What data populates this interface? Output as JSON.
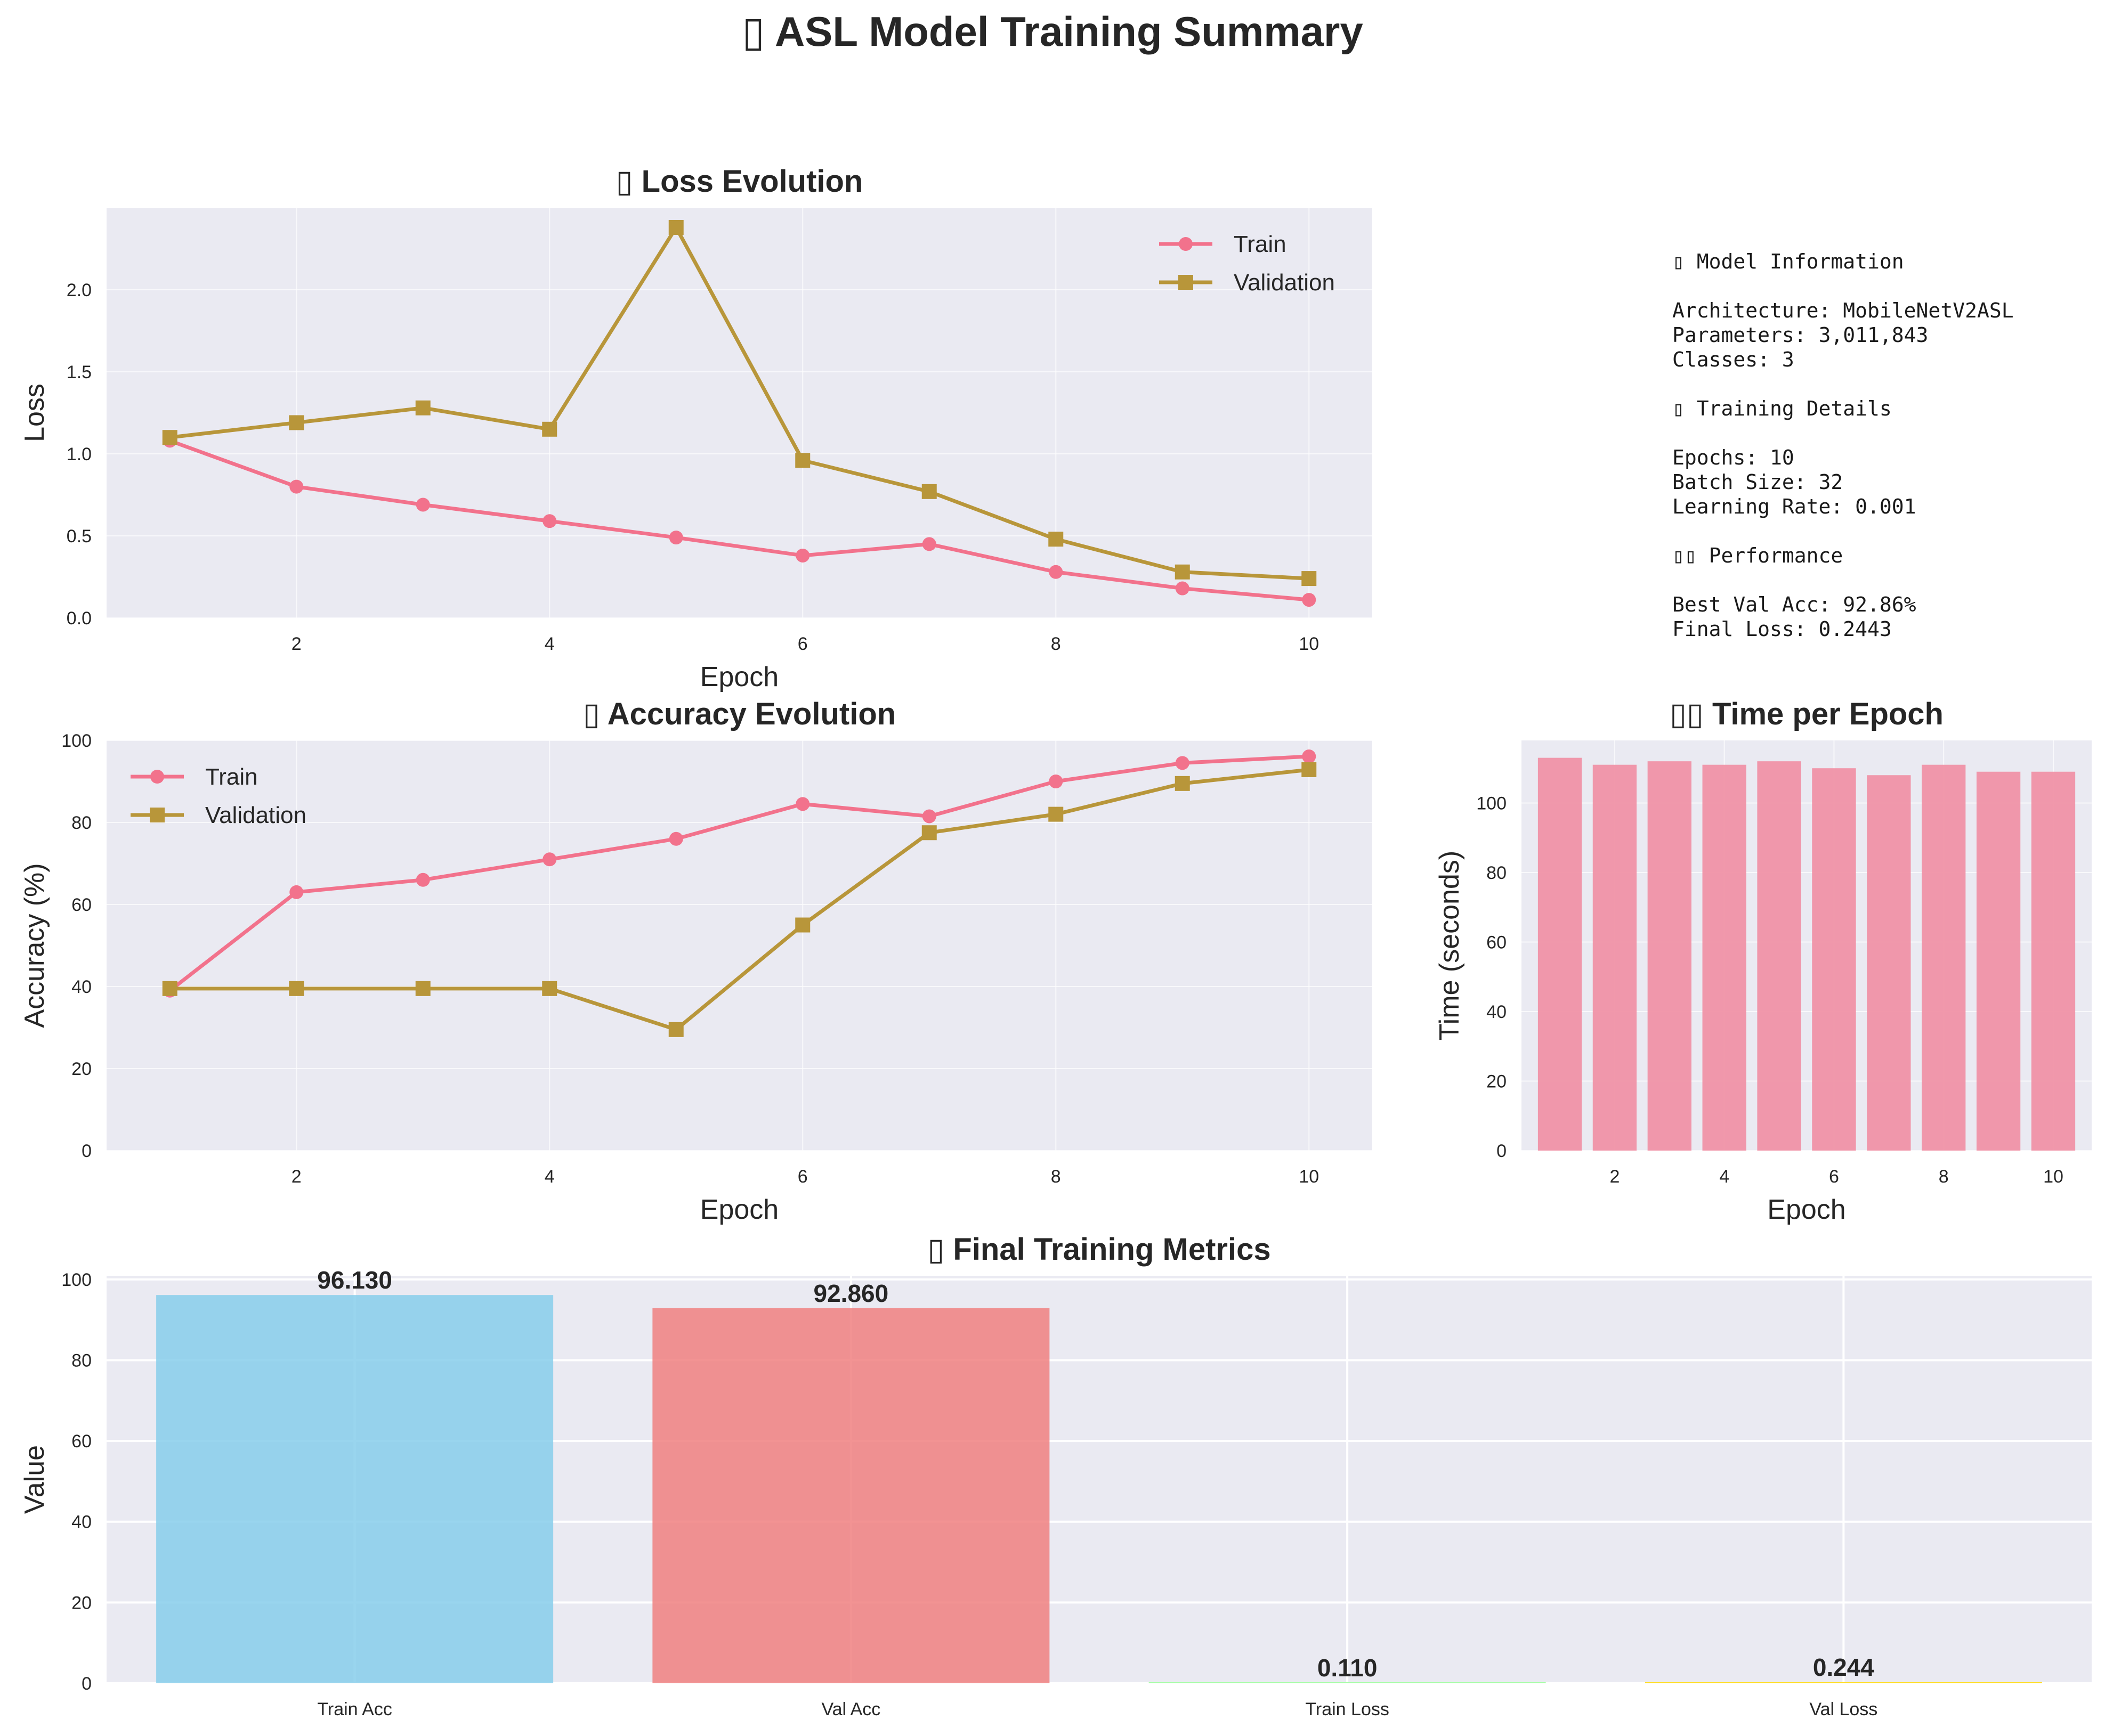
{
  "title": "▯ ASL Model Training Summary",
  "palette": {
    "background": "#eaeaf2",
    "grid": "#ffffff",
    "train": "#f2728c",
    "validation": "#b8963a",
    "time_bar": "#f092a6",
    "metric_bars": [
      "#87ceeb",
      "#f08080",
      "#98fb98",
      "#ffd700"
    ]
  },
  "model_info": {
    "lines": [
      "▯ Model Information",
      "",
      "Architecture: MobileNetV2ASL",
      "Parameters: 3,011,843",
      "Classes: 3",
      "",
      "▯ Training Details",
      "",
      "Epochs: 10",
      "Batch Size: 32",
      "Learning Rate: 0.001",
      "",
      "▯▯ Performance",
      "",
      "Best Val Acc: 92.86%",
      "Final Loss: 0.2443"
    ]
  },
  "chart_data": [
    {
      "id": "loss",
      "type": "line",
      "title": "▯ Loss Evolution",
      "xlabel": "Epoch",
      "ylabel": "Loss",
      "x": [
        1,
        2,
        3,
        4,
        5,
        6,
        7,
        8,
        9,
        10
      ],
      "xlim": [
        0.5,
        10.5
      ],
      "ylim": [
        0,
        2.5
      ],
      "xticks": [
        2,
        4,
        6,
        8,
        10
      ],
      "yticks": [
        0.0,
        0.5,
        1.0,
        1.5,
        2.0
      ],
      "ytick_labels": [
        "0.0",
        "0.5",
        "1.0",
        "1.5",
        "2.0"
      ],
      "grid": true,
      "legend": "upper right",
      "series": [
        {
          "name": "Train",
          "marker": "circle",
          "values": [
            1.08,
            0.8,
            0.69,
            0.59,
            0.49,
            0.38,
            0.45,
            0.28,
            0.18,
            0.11
          ]
        },
        {
          "name": "Validation",
          "marker": "square",
          "values": [
            1.1,
            1.19,
            1.28,
            1.15,
            2.38,
            0.96,
            0.77,
            0.48,
            0.28,
            0.24
          ]
        }
      ]
    },
    {
      "id": "accuracy",
      "type": "line",
      "title": "▯ Accuracy Evolution",
      "xlabel": "Epoch",
      "ylabel": "Accuracy (%)",
      "x": [
        1,
        2,
        3,
        4,
        5,
        6,
        7,
        8,
        9,
        10
      ],
      "xlim": [
        0.5,
        10.5
      ],
      "ylim": [
        0,
        100
      ],
      "xticks": [
        2,
        4,
        6,
        8,
        10
      ],
      "yticks": [
        0,
        20,
        40,
        60,
        80,
        100
      ],
      "ytick_labels": [
        "0",
        "20",
        "40",
        "60",
        "80",
        "100"
      ],
      "grid": true,
      "legend": "upper left",
      "series": [
        {
          "name": "Train",
          "marker": "circle",
          "values": [
            39,
            63,
            66,
            71,
            76,
            84.5,
            81.5,
            90,
            94.5,
            96.1
          ]
        },
        {
          "name": "Validation",
          "marker": "square",
          "values": [
            39.5,
            39.5,
            39.5,
            39.5,
            29.5,
            55,
            77.5,
            82,
            89.5,
            92.86
          ]
        }
      ]
    },
    {
      "id": "time",
      "type": "bar",
      "title": "▯▯ Time per Epoch",
      "xlabel": "Epoch",
      "ylabel": "Time (seconds)",
      "x": [
        1,
        2,
        3,
        4,
        5,
        6,
        7,
        8,
        9,
        10
      ],
      "values": [
        113,
        111,
        112,
        111,
        112,
        110,
        108,
        111,
        109,
        109
      ],
      "xlim": [
        0.3,
        10.7
      ],
      "ylim": [
        0,
        118
      ],
      "xticks": [
        2,
        4,
        6,
        8,
        10
      ],
      "yticks": [
        0,
        20,
        40,
        60,
        80,
        100
      ],
      "ytick_labels": [
        "0",
        "20",
        "40",
        "60",
        "80",
        "100"
      ],
      "grid": true
    },
    {
      "id": "final",
      "type": "bar",
      "title": "▯ Final Training Metrics",
      "xlabel": "",
      "ylabel": "Value",
      "categories": [
        "Train Acc",
        "Val Acc",
        "Train Loss",
        "Val Loss"
      ],
      "values": [
        96.13,
        92.86,
        0.11,
        0.244
      ],
      "value_labels": [
        "96.130",
        "92.860",
        "0.110",
        "0.244"
      ],
      "ylim": [
        0,
        100.9
      ],
      "yticks": [
        0,
        20,
        40,
        60,
        80,
        100
      ],
      "ytick_labels": [
        "0",
        "20",
        "40",
        "60",
        "80",
        "100"
      ],
      "grid": true
    }
  ]
}
